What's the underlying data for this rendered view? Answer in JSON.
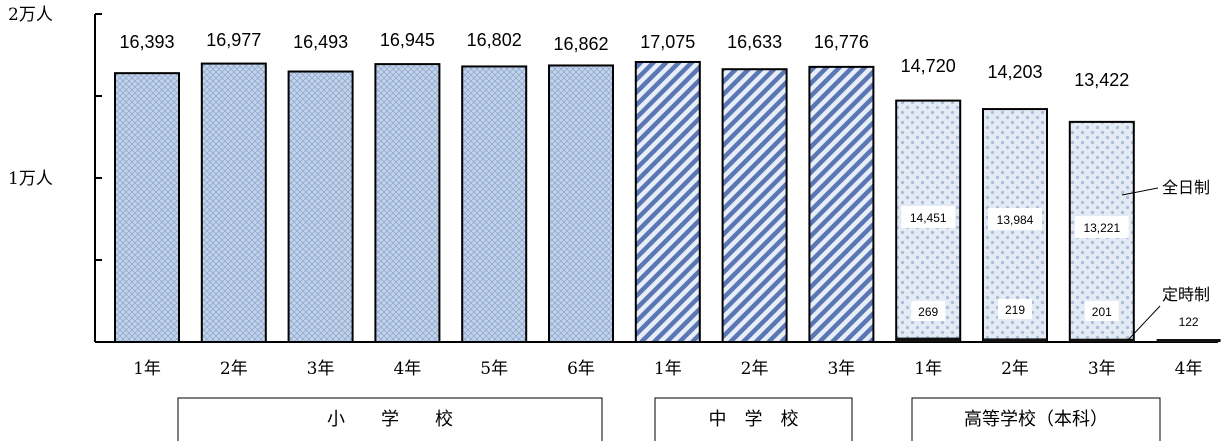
{
  "chart_data": {
    "type": "bar",
    "yunit": "人",
    "ylim": [
      0,
      20000
    ],
    "yticks": [
      {
        "value": 20000,
        "label": "2万人"
      },
      {
        "value": 10000,
        "label": "1万人"
      }
    ],
    "categories": [
      "1年",
      "2年",
      "3年",
      "4年",
      "5年",
      "6年",
      "1年",
      "2年",
      "3年",
      "1年",
      "2年",
      "3年",
      "4年"
    ],
    "groups": [
      {
        "label": "小　　学　　校",
        "start": 0,
        "end": 5
      },
      {
        "label": "中　学　校",
        "start": 6,
        "end": 8
      },
      {
        "label": "高等学校（本科）",
        "start": 9,
        "end": 12
      }
    ],
    "totals": [
      "16,393",
      "16,977",
      "16,493",
      "16,945",
      "16,802",
      "16,862",
      "17,075",
      "16,633",
      "16,776",
      "14,720",
      "14,203",
      "13,422",
      ""
    ],
    "values": [
      16393,
      16977,
      16493,
      16945,
      16802,
      16862,
      17075,
      16633,
      16776,
      14720,
      14203,
      13422,
      122
    ],
    "series": [
      {
        "name": "全日制",
        "values": [
          null,
          null,
          null,
          null,
          null,
          null,
          null,
          null,
          null,
          14451,
          13984,
          13221,
          null
        ],
        "labels": [
          "",
          "",
          "",
          "",
          "",
          "",
          "",
          "",
          "",
          "14,451",
          "13,984",
          "13,221",
          ""
        ]
      },
      {
        "name": "定時制",
        "values": [
          null,
          null,
          null,
          null,
          null,
          null,
          null,
          null,
          null,
          269,
          219,
          201,
          122
        ],
        "labels": [
          "",
          "",
          "",
          "",
          "",
          "",
          "",
          "",
          "",
          "269",
          "219",
          "201",
          "122"
        ]
      }
    ],
    "colors": {
      "elementary": "#b9cde6",
      "junior": "#5d78b4",
      "high": "#cdd9ea",
      "night": "#111111"
    }
  }
}
